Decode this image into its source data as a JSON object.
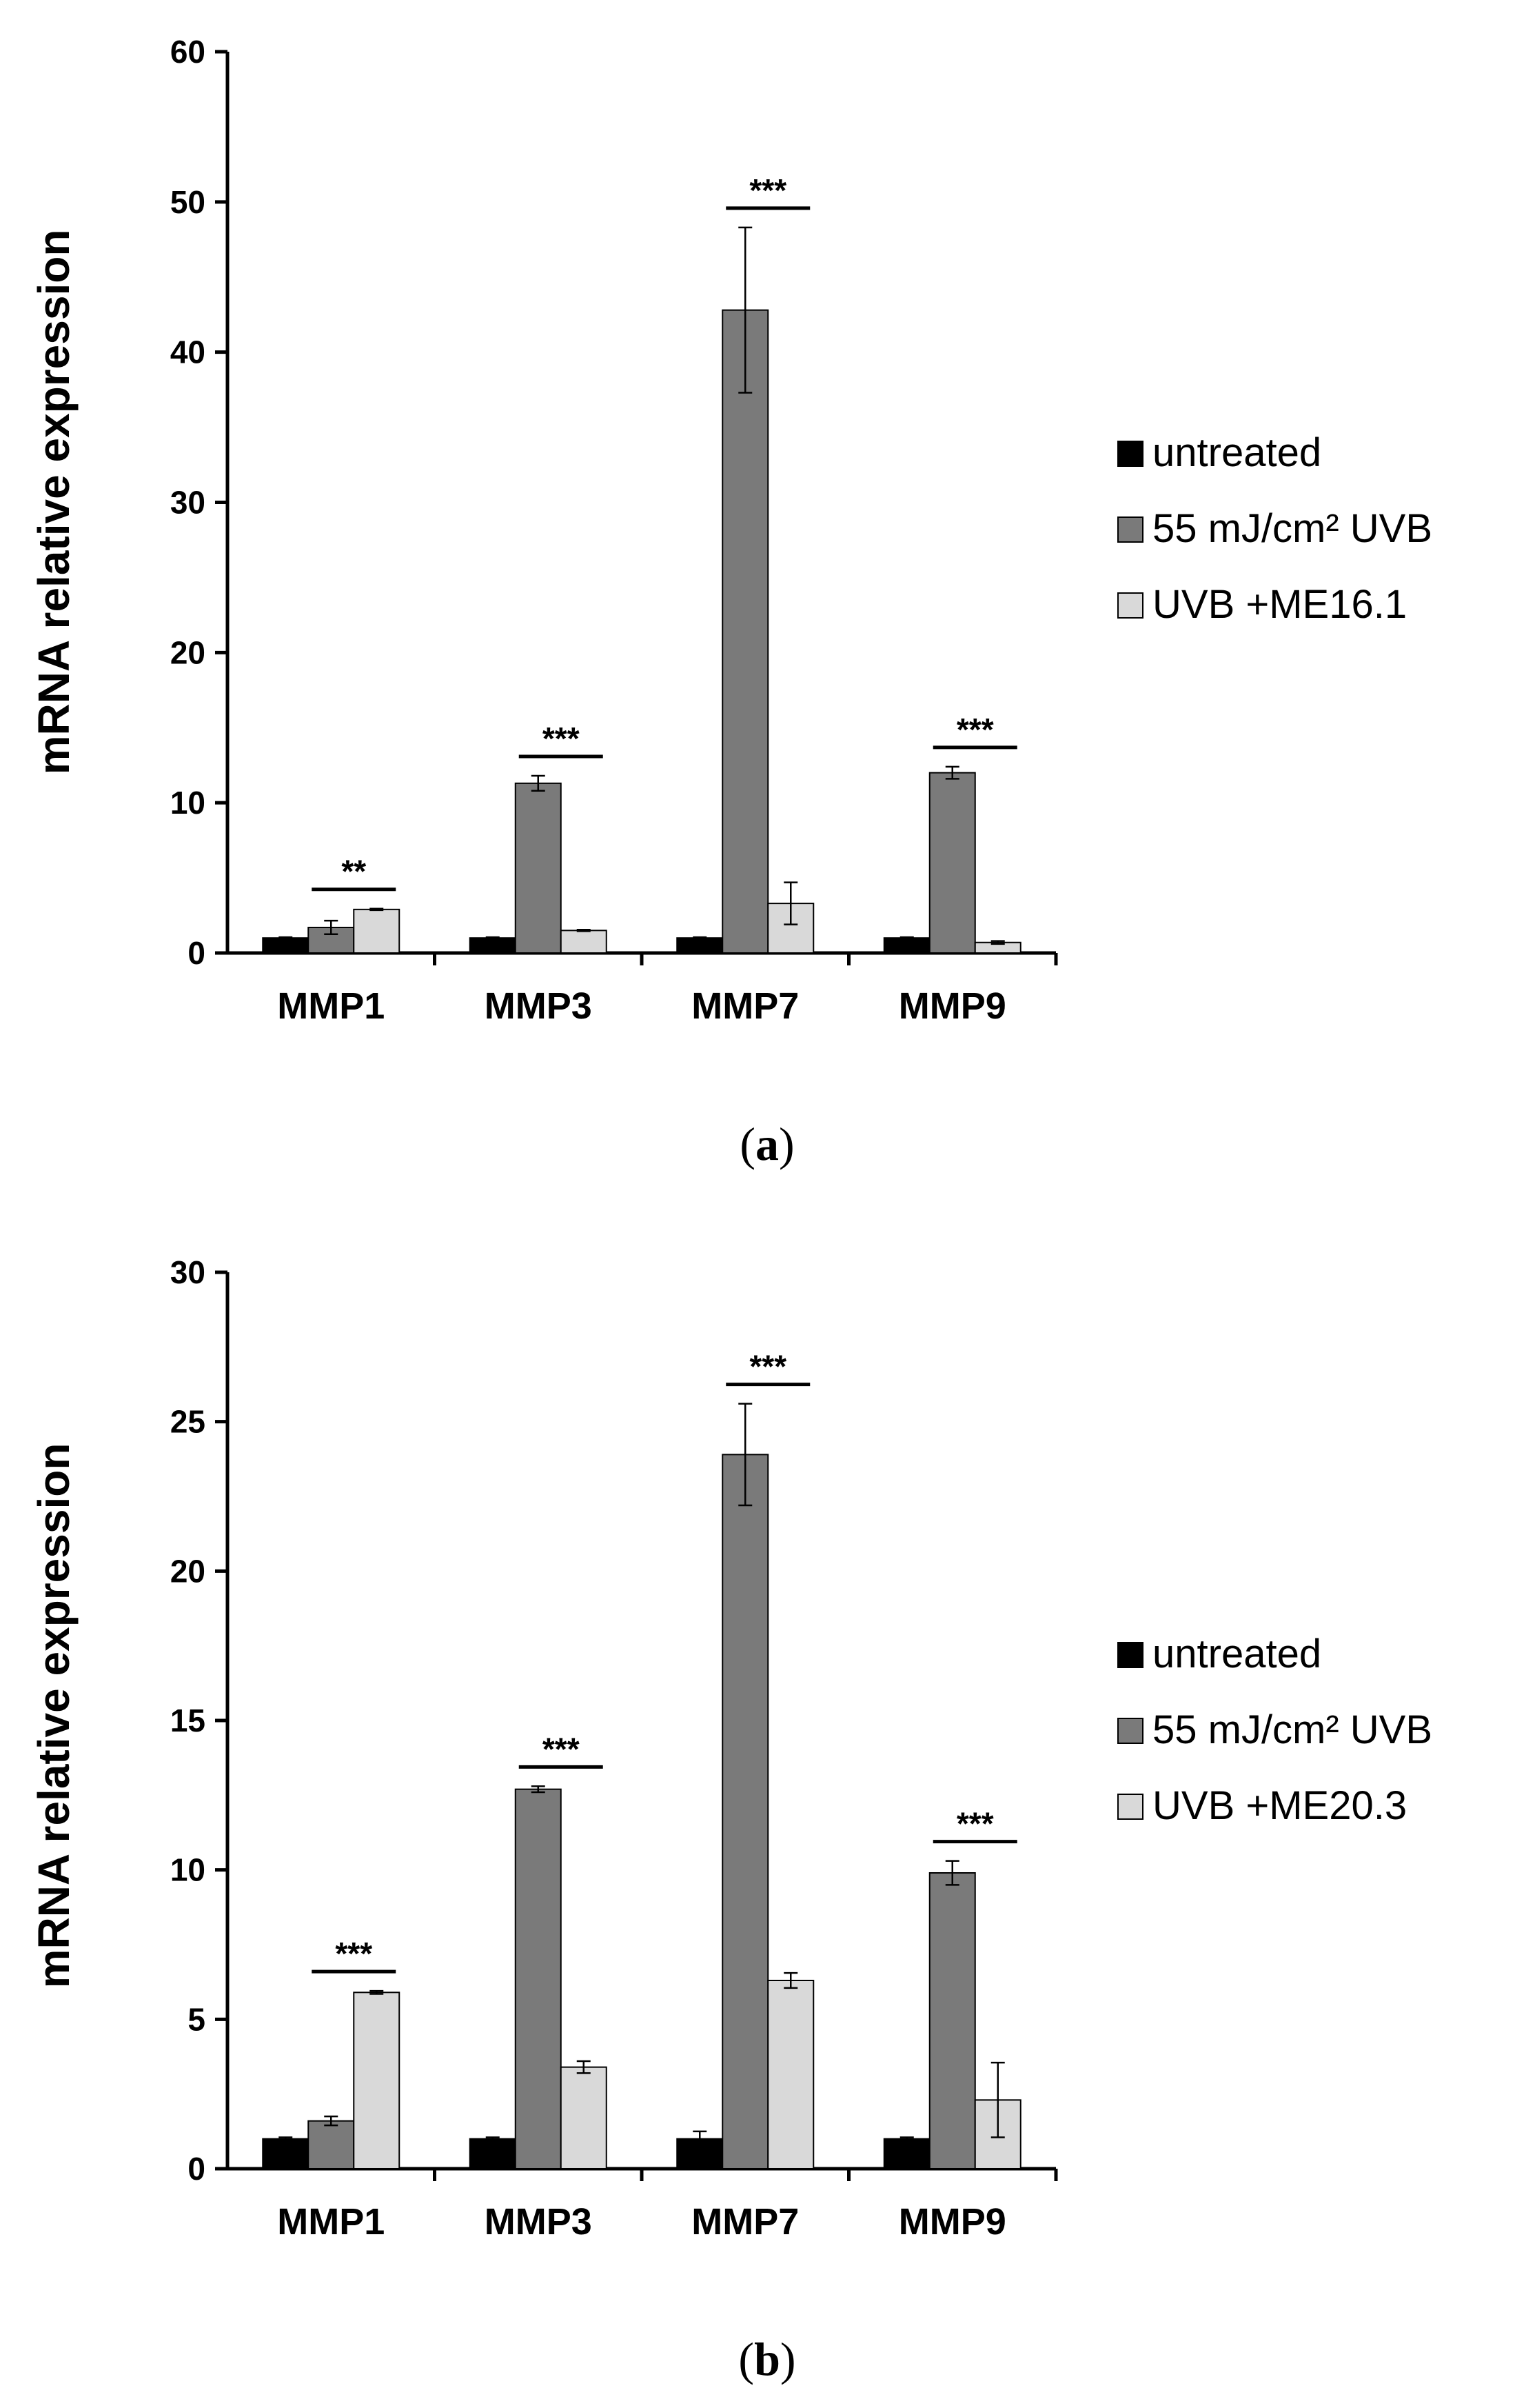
{
  "colors": {
    "untreated": "#000000",
    "uvb": "#7a7a7a",
    "treated": "#d9d9d9"
  },
  "chart_data": [
    {
      "type": "bar",
      "panel_label": "a",
      "ylabel": "mRNA relative expression",
      "ylim": [
        0,
        60
      ],
      "yticks": [
        0,
        10,
        20,
        30,
        40,
        50,
        60
      ],
      "categories": [
        "MMP1",
        "MMP3",
        "MMP7",
        "MMP9"
      ],
      "series": [
        {
          "name": "untreated",
          "values": [
            1.0,
            1.0,
            1.0,
            1.0
          ],
          "errors": [
            0.05,
            0.05,
            0.05,
            0.05
          ]
        },
        {
          "name": "55 mJ/cm² UVB",
          "values": [
            1.7,
            11.3,
            42.8,
            12.0
          ],
          "errors": [
            0.45,
            0.5,
            5.5,
            0.4
          ]
        },
        {
          "name": "UVB +ME16.1",
          "values": [
            2.9,
            1.5,
            3.3,
            0.7
          ],
          "errors": [
            0.05,
            0.05,
            1.4,
            0.1
          ]
        }
      ],
      "significance": [
        "**",
        "***",
        "***",
        "***"
      ],
      "legend_position": "right"
    },
    {
      "type": "bar",
      "panel_label": "b",
      "ylabel": "mRNA relative expression",
      "ylim": [
        0,
        30
      ],
      "yticks": [
        0,
        5,
        10,
        15,
        20,
        25,
        30
      ],
      "categories": [
        "MMP1",
        "MMP3",
        "MMP7",
        "MMP9"
      ],
      "series": [
        {
          "name": "untreated",
          "values": [
            1.0,
            1.0,
            1.0,
            1.0
          ],
          "errors": [
            0.05,
            0.05,
            0.25,
            0.05
          ]
        },
        {
          "name": "55 mJ/cm² UVB",
          "values": [
            1.6,
            12.7,
            23.9,
            9.9
          ],
          "errors": [
            0.15,
            0.1,
            1.7,
            0.4
          ]
        },
        {
          "name": "UVB +ME20.3",
          "values": [
            5.9,
            3.4,
            6.3,
            2.3
          ],
          "errors": [
            0.05,
            0.2,
            0.25,
            1.25
          ]
        }
      ],
      "significance": [
        "***",
        "***",
        "***",
        "***"
      ],
      "legend_position": "right"
    }
  ]
}
